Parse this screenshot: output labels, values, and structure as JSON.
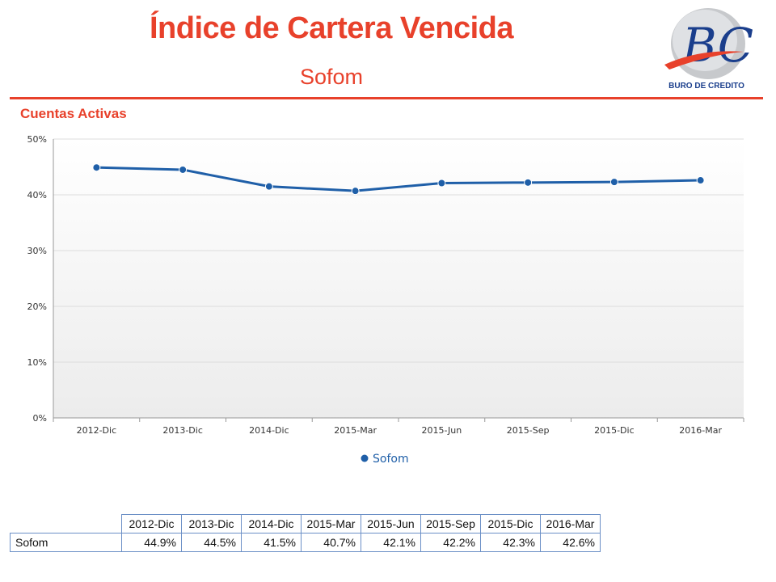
{
  "header": {
    "title": "Índice de Cartera Vencida",
    "subtitle": "Sofom",
    "logo_text": "BURO DE CREDITO"
  },
  "section_label": "Cuentas Activas",
  "colors": {
    "accent": "#e8412b",
    "series": "#1f5fa8",
    "logo_blue": "#1a3e8c"
  },
  "chart_data": {
    "type": "line",
    "title": "",
    "xlabel": "",
    "ylabel": "",
    "categories": [
      "2012-Dic",
      "2013-Dic",
      "2014-Dic",
      "2015-Mar",
      "2015-Jun",
      "2015-Sep",
      "2015-Dic",
      "2016-Mar"
    ],
    "series": [
      {
        "name": "Sofom",
        "values": [
          44.9,
          44.5,
          41.5,
          40.7,
          42.1,
          42.2,
          42.3,
          42.6
        ]
      }
    ],
    "ylim": [
      0,
      50
    ],
    "yticks": [
      0,
      10,
      20,
      30,
      40,
      50
    ],
    "ytick_labels": [
      "0%",
      "10%",
      "20%",
      "30%",
      "40%",
      "50%"
    ],
    "grid": true,
    "legend": "bottom-center"
  },
  "table": {
    "columns": [
      "2012-Dic",
      "2013-Dic",
      "2014-Dic",
      "2015-Mar",
      "2015-Jun",
      "2015-Sep",
      "2015-Dic",
      "2016-Mar"
    ],
    "rows": [
      {
        "label": "Sofom",
        "values": [
          "44.9%",
          "44.5%",
          "41.5%",
          "40.7%",
          "42.1%",
          "42.2%",
          "42.3%",
          "42.6%"
        ]
      }
    ]
  }
}
